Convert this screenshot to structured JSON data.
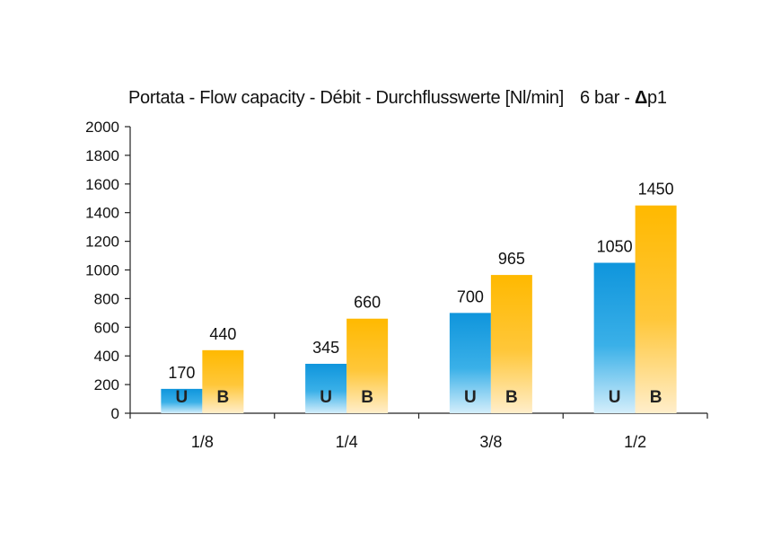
{
  "chart_data": {
    "type": "bar",
    "title": "Portata - Flow capacity - Débit - Durchflusswerte [Nl/min]",
    "subtitle_prefix": "6 bar - ",
    "subtitle_delta": "Δ",
    "subtitle_suffix": "p1",
    "categories": [
      "1/8",
      "1/4",
      "3/8",
      "1/2"
    ],
    "series": [
      {
        "name": "U",
        "color": "#1e9ee0",
        "values": [
          170,
          345,
          700,
          1050
        ]
      },
      {
        "name": "B",
        "color": "#ffc10e",
        "values": [
          440,
          660,
          965,
          1450
        ]
      }
    ],
    "ylim": [
      0,
      2000
    ],
    "yticks": [
      "0",
      "200",
      "400",
      "600",
      "800",
      "1000",
      "1200",
      "1400",
      "1600",
      "1800",
      "2000"
    ],
    "grid": false,
    "legend": "none"
  }
}
